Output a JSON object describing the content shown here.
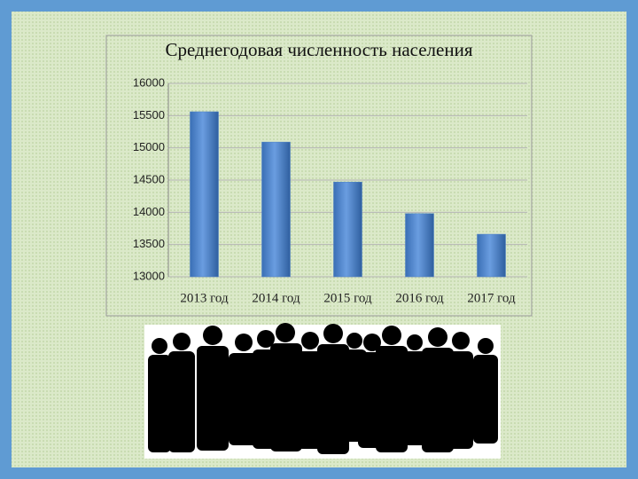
{
  "chart_data": {
    "type": "bar",
    "title": "Среднегодовая численность населения",
    "categories": [
      "2013 год",
      "2014 год",
      "2015 год",
      "2016 год",
      "2017 год"
    ],
    "values": [
      15560,
      15090,
      14470,
      13980,
      13660
    ],
    "color": "#4a7fc4",
    "ylim": [
      13000,
      16000
    ],
    "yticks": [
      13000,
      13500,
      14000,
      14500,
      15000,
      15500,
      16000
    ],
    "grid": true
  }
}
